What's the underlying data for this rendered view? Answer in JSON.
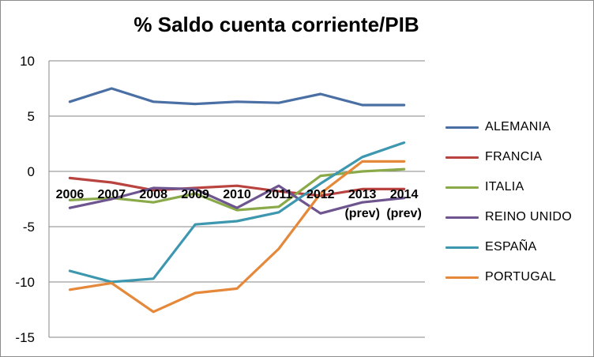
{
  "chart_data": {
    "type": "line",
    "title": "% Saldo cuenta corriente/PIB",
    "xlabel": "",
    "ylabel": "",
    "categories": [
      "2006",
      "2007",
      "2008",
      "2009",
      "2010",
      "2011",
      "2012",
      "2013\n(prev)",
      "2014\n(prev)"
    ],
    "category_lines": [
      [
        "2006"
      ],
      [
        "2007"
      ],
      [
        "2008"
      ],
      [
        "2009"
      ],
      [
        "2010"
      ],
      [
        "2011"
      ],
      [
        "2012"
      ],
      [
        "2013",
        "(prev)"
      ],
      [
        "2014",
        "(prev)"
      ]
    ],
    "y_ticks": [
      "10",
      "5",
      "0",
      "-5",
      "-10",
      "-15"
    ],
    "ylim": [
      -15,
      10
    ],
    "grid": true,
    "legend_position": "right",
    "series": [
      {
        "name": "ALEMANIA",
        "color": "#4a6fa5",
        "values": [
          6.3,
          7.5,
          6.3,
          6.1,
          6.3,
          6.2,
          7.0,
          6.0,
          6.0
        ]
      },
      {
        "name": "FRANCIA",
        "color": "#b8433f",
        "values": [
          -0.6,
          -1.0,
          -1.7,
          -1.5,
          -1.3,
          -1.8,
          -2.2,
          -1.6,
          -1.6
        ]
      },
      {
        "name": "ITALIA",
        "color": "#8aaa4a",
        "values": [
          -2.6,
          -2.4,
          -2.8,
          -2.0,
          -3.5,
          -3.2,
          -0.4,
          0.0,
          0.2
        ]
      },
      {
        "name": "REINO UNIDO",
        "color": "#6f558f",
        "values": [
          -3.3,
          -2.5,
          -1.5,
          -1.6,
          -3.3,
          -1.3,
          -3.8,
          -2.8,
          -2.4
        ]
      },
      {
        "name": "ESPAÑA",
        "color": "#3d97ae",
        "values": [
          -9.0,
          -10.0,
          -9.7,
          -4.8,
          -4.5,
          -3.7,
          -1.1,
          1.3,
          2.6
        ]
      },
      {
        "name": "PORTUGAL",
        "color": "#e5883a",
        "values": [
          -10.7,
          -10.1,
          -12.7,
          -11.0,
          -10.6,
          -7.0,
          -2.0,
          0.9,
          0.9
        ]
      }
    ]
  }
}
